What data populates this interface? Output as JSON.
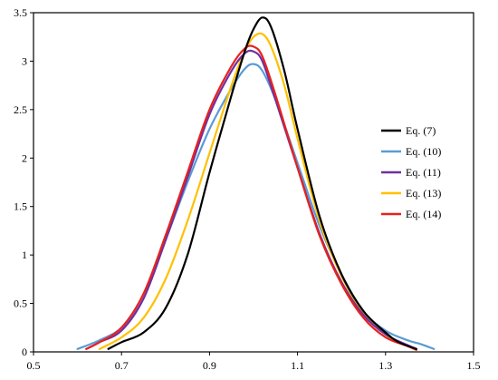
{
  "chart_data": {
    "type": "line",
    "title": "",
    "xlabel": "",
    "ylabel": "",
    "xlim": [
      0.5,
      1.5
    ],
    "ylim": [
      0,
      3.5
    ],
    "x_ticks": [
      "0.5",
      "0.7",
      "0.9",
      "1.1",
      "1.3",
      "1.5"
    ],
    "y_ticks": [
      "0",
      "0.5",
      "1",
      "1.5",
      "2",
      "2.5",
      "3",
      "3.5"
    ],
    "grid": false,
    "legend_position": "right",
    "series": [
      {
        "name": "Eq. (7)",
        "color": "#000000",
        "points": [
          [
            0.67,
            0.03
          ],
          [
            0.7,
            0.1
          ],
          [
            0.75,
            0.2
          ],
          [
            0.8,
            0.45
          ],
          [
            0.85,
            1.0
          ],
          [
            0.9,
            1.85
          ],
          [
            0.95,
            2.65
          ],
          [
            0.98,
            3.1
          ],
          [
            1.0,
            3.33
          ],
          [
            1.02,
            3.45
          ],
          [
            1.04,
            3.35
          ],
          [
            1.07,
            2.9
          ],
          [
            1.1,
            2.3
          ],
          [
            1.15,
            1.4
          ],
          [
            1.2,
            0.8
          ],
          [
            1.25,
            0.42
          ],
          [
            1.3,
            0.2
          ],
          [
            1.33,
            0.1
          ],
          [
            1.37,
            0.03
          ]
        ]
      },
      {
        "name": "Eq. (10)",
        "color": "#5B9BD5",
        "points": [
          [
            0.6,
            0.03
          ],
          [
            0.65,
            0.12
          ],
          [
            0.7,
            0.25
          ],
          [
            0.75,
            0.55
          ],
          [
            0.8,
            1.15
          ],
          [
            0.85,
            1.75
          ],
          [
            0.9,
            2.3
          ],
          [
            0.95,
            2.72
          ],
          [
            0.98,
            2.92
          ],
          [
            1.0,
            2.97
          ],
          [
            1.02,
            2.9
          ],
          [
            1.05,
            2.6
          ],
          [
            1.1,
            1.95
          ],
          [
            1.15,
            1.3
          ],
          [
            1.2,
            0.8
          ],
          [
            1.25,
            0.42
          ],
          [
            1.3,
            0.22
          ],
          [
            1.35,
            0.12
          ],
          [
            1.38,
            0.08
          ],
          [
            1.41,
            0.03
          ]
        ]
      },
      {
        "name": "Eq. (11)",
        "color": "#7030A0",
        "points": [
          [
            0.62,
            0.03
          ],
          [
            0.65,
            0.1
          ],
          [
            0.7,
            0.22
          ],
          [
            0.75,
            0.55
          ],
          [
            0.8,
            1.15
          ],
          [
            0.85,
            1.8
          ],
          [
            0.9,
            2.45
          ],
          [
            0.95,
            2.9
          ],
          [
            0.98,
            3.08
          ],
          [
            1.0,
            3.1
          ],
          [
            1.02,
            3.0
          ],
          [
            1.05,
            2.6
          ],
          [
            1.1,
            1.9
          ],
          [
            1.15,
            1.22
          ],
          [
            1.2,
            0.72
          ],
          [
            1.25,
            0.38
          ],
          [
            1.3,
            0.18
          ],
          [
            1.35,
            0.07
          ],
          [
            1.37,
            0.03
          ]
        ]
      },
      {
        "name": "Eq. (13)",
        "color": "#FFC000",
        "points": [
          [
            0.65,
            0.03
          ],
          [
            0.7,
            0.15
          ],
          [
            0.75,
            0.35
          ],
          [
            0.8,
            0.75
          ],
          [
            0.85,
            1.35
          ],
          [
            0.9,
            2.05
          ],
          [
            0.95,
            2.75
          ],
          [
            0.98,
            3.1
          ],
          [
            1.0,
            3.25
          ],
          [
            1.02,
            3.28
          ],
          [
            1.04,
            3.15
          ],
          [
            1.07,
            2.75
          ],
          [
            1.1,
            2.2
          ],
          [
            1.15,
            1.35
          ],
          [
            1.2,
            0.78
          ],
          [
            1.25,
            0.4
          ],
          [
            1.3,
            0.18
          ],
          [
            1.34,
            0.08
          ],
          [
            1.37,
            0.03
          ]
        ]
      },
      {
        "name": "Eq. (14)",
        "color": "#E8211C",
        "points": [
          [
            0.62,
            0.03
          ],
          [
            0.65,
            0.1
          ],
          [
            0.7,
            0.25
          ],
          [
            0.75,
            0.6
          ],
          [
            0.8,
            1.2
          ],
          [
            0.85,
            1.85
          ],
          [
            0.9,
            2.5
          ],
          [
            0.95,
            2.95
          ],
          [
            0.98,
            3.13
          ],
          [
            1.0,
            3.15
          ],
          [
            1.02,
            3.05
          ],
          [
            1.05,
            2.65
          ],
          [
            1.1,
            1.9
          ],
          [
            1.15,
            1.2
          ],
          [
            1.2,
            0.7
          ],
          [
            1.25,
            0.35
          ],
          [
            1.3,
            0.15
          ],
          [
            1.35,
            0.06
          ],
          [
            1.37,
            0.02
          ]
        ]
      }
    ]
  }
}
